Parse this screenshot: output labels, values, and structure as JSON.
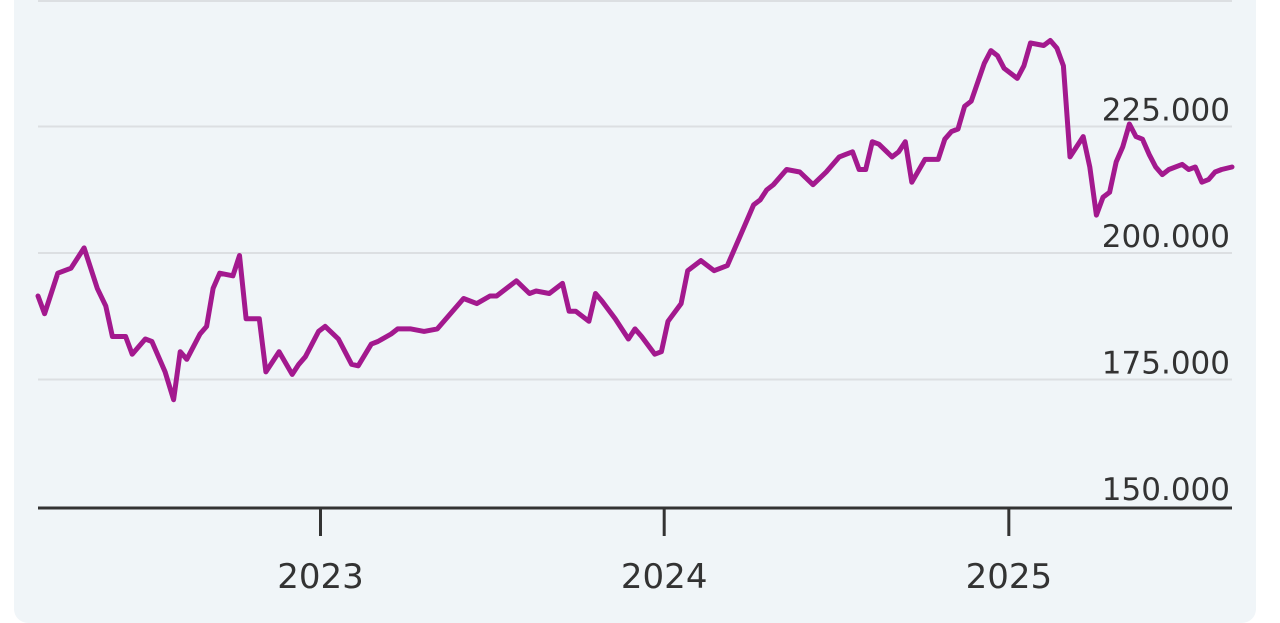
{
  "chart_data": {
    "type": "line",
    "title": "",
    "xlabel": "",
    "ylabel": "",
    "x_range": [
      "2022-03-07",
      "2025-08-26"
    ],
    "ylim": [
      150000,
      250000
    ],
    "y_ticks": [
      150000,
      175000,
      200000,
      225000
    ],
    "y_tick_labels": [
      "150.000",
      "175.000",
      "200.000",
      "225.000"
    ],
    "x_ticks": [
      "2023-01-01",
      "2024-01-01",
      "2025-01-01"
    ],
    "x_tick_labels": [
      "2023",
      "2024",
      "2025"
    ],
    "grid": true,
    "line_color": "#a3198e",
    "series": [
      {
        "name": "",
        "x": [
          "2022-03-07",
          "2022-03-14",
          "2022-03-28",
          "2022-04-11",
          "2022-04-25",
          "2022-05-09",
          "2022-05-18",
          "2022-05-25",
          "2022-06-08",
          "2022-06-15",
          "2022-06-29",
          "2022-07-06",
          "2022-07-20",
          "2022-07-29",
          "2022-08-05",
          "2022-08-12",
          "2022-08-26",
          "2022-09-02",
          "2022-09-09",
          "2022-09-16",
          "2022-09-30",
          "2022-10-07",
          "2022-10-14",
          "2022-10-28",
          "2022-11-04",
          "2022-11-18",
          "2022-12-02",
          "2022-12-09",
          "2022-12-16",
          "2022-12-30",
          "2023-01-06",
          "2023-01-20",
          "2023-02-03",
          "2023-02-10",
          "2023-02-24",
          "2023-03-03",
          "2023-03-17",
          "2023-03-24",
          "2023-04-07",
          "2023-04-21",
          "2023-05-05",
          "2023-05-19",
          "2023-06-02",
          "2023-06-16",
          "2023-06-30",
          "2023-07-07",
          "2023-07-21",
          "2023-07-28",
          "2023-08-11",
          "2023-08-18",
          "2023-09-01",
          "2023-09-15",
          "2023-09-22",
          "2023-09-29",
          "2023-10-13",
          "2023-10-20",
          "2023-10-27",
          "2023-11-10",
          "2023-11-24",
          "2023-12-01",
          "2023-12-08",
          "2023-12-22",
          "2023-12-29",
          "2024-01-05",
          "2024-01-19",
          "2024-01-26",
          "2024-02-09",
          "2024-02-23",
          "2024-03-08",
          "2024-03-22",
          "2024-04-05",
          "2024-04-12",
          "2024-04-19",
          "2024-04-26",
          "2024-05-10",
          "2024-05-24",
          "2024-06-07",
          "2024-06-21",
          "2024-07-05",
          "2024-07-12",
          "2024-07-19",
          "2024-07-26",
          "2024-08-02",
          "2024-08-09",
          "2024-08-16",
          "2024-08-30",
          "2024-09-06",
          "2024-09-13",
          "2024-09-20",
          "2024-10-04",
          "2024-10-18",
          "2024-10-25",
          "2024-11-01",
          "2024-11-08",
          "2024-11-15",
          "2024-11-22",
          "2024-12-06",
          "2024-12-13",
          "2024-12-20",
          "2024-12-27",
          "2025-01-10",
          "2025-01-17",
          "2025-01-24",
          "2025-02-07",
          "2025-02-14",
          "2025-02-21",
          "2025-02-28",
          "2025-03-07",
          "2025-03-21",
          "2025-03-28",
          "2025-04-04",
          "2025-04-11",
          "2025-04-18",
          "2025-04-25",
          "2025-05-02",
          "2025-05-09",
          "2025-05-16",
          "2025-05-23",
          "2025-05-30",
          "2025-06-06",
          "2025-06-13",
          "2025-06-20",
          "2025-07-04",
          "2025-07-11",
          "2025-07-18",
          "2025-07-25",
          "2025-08-01",
          "2025-08-08",
          "2025-08-15",
          "2025-08-26"
        ],
        "values": [
          191500,
          188000,
          196000,
          197000,
          201000,
          193000,
          189500,
          183500,
          183500,
          180000,
          183000,
          182500,
          176500,
          171000,
          180500,
          179000,
          184000,
          185500,
          193000,
          196000,
          195500,
          199500,
          187000,
          187000,
          176500,
          180500,
          176000,
          178000,
          179500,
          184500,
          185500,
          183000,
          178000,
          177700,
          182000,
          182500,
          184000,
          185000,
          185000,
          184500,
          185000,
          188000,
          191000,
          190000,
          191500,
          191500,
          193500,
          194500,
          192000,
          192500,
          192000,
          194000,
          188500,
          188500,
          186500,
          192000,
          190500,
          187000,
          183000,
          185000,
          183500,
          180000,
          180500,
          186500,
          190000,
          196500,
          198500,
          196500,
          197500,
          203500,
          209500,
          210500,
          212500,
          213500,
          216500,
          216000,
          213500,
          216000,
          219000,
          219500,
          220000,
          216500,
          216500,
          222000,
          221500,
          219000,
          220000,
          222000,
          214000,
          218500,
          218500,
          222500,
          224000,
          224500,
          229000,
          230000,
          237500,
          240000,
          239000,
          236500,
          234500,
          237000,
          241500,
          241000,
          242000,
          240500,
          237000,
          219000,
          223000,
          217000,
          207500,
          211000,
          212000,
          218000,
          221000,
          225500,
          223000,
          222500,
          219500,
          217000,
          215500,
          216500,
          217500,
          216500,
          217000,
          214000,
          214500,
          216000,
          216500,
          217000
        ]
      }
    ]
  }
}
